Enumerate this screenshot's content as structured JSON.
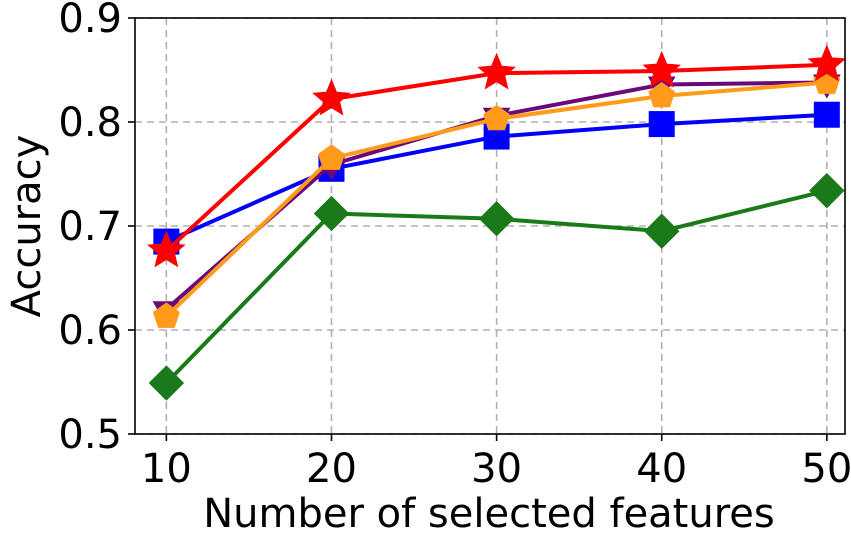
{
  "chart_data": {
    "type": "line",
    "title": "",
    "xlabel": "Number of selected features",
    "ylabel": "Accuracy",
    "x": [
      10,
      20,
      30,
      40,
      50
    ],
    "x_ticks": [
      10,
      20,
      30,
      40,
      50
    ],
    "x_tick_labels": [
      "10",
      "20",
      "30",
      "40",
      "50"
    ],
    "xlim": [
      8.1,
      51.1
    ],
    "ylim": [
      0.5,
      0.9
    ],
    "y_ticks": [
      0.5,
      0.6,
      0.7,
      0.8,
      0.9
    ],
    "y_tick_labels": [
      "0.5",
      "0.6",
      "0.7",
      "0.8",
      "0.9"
    ],
    "grid": true,
    "legend": "none",
    "series": [
      {
        "color": "#1a7a1a",
        "marker": "diamond",
        "values": [
          0.549,
          0.712,
          0.707,
          0.695,
          0.734
        ]
      },
      {
        "color": "#0000ff",
        "marker": "square",
        "values": [
          0.685,
          0.755,
          0.786,
          0.798,
          0.807
        ]
      },
      {
        "color": "#6a0a7a",
        "marker": "triangle-down",
        "values": [
          0.62,
          0.759,
          0.806,
          0.836,
          0.838
        ]
      },
      {
        "color": "#ff9a1a",
        "marker": "pentagon",
        "values": [
          0.613,
          0.765,
          0.803,
          0.825,
          0.838
        ]
      },
      {
        "color": "#ff0000",
        "marker": "star",
        "values": [
          0.676,
          0.822,
          0.847,
          0.849,
          0.855
        ]
      }
    ]
  }
}
